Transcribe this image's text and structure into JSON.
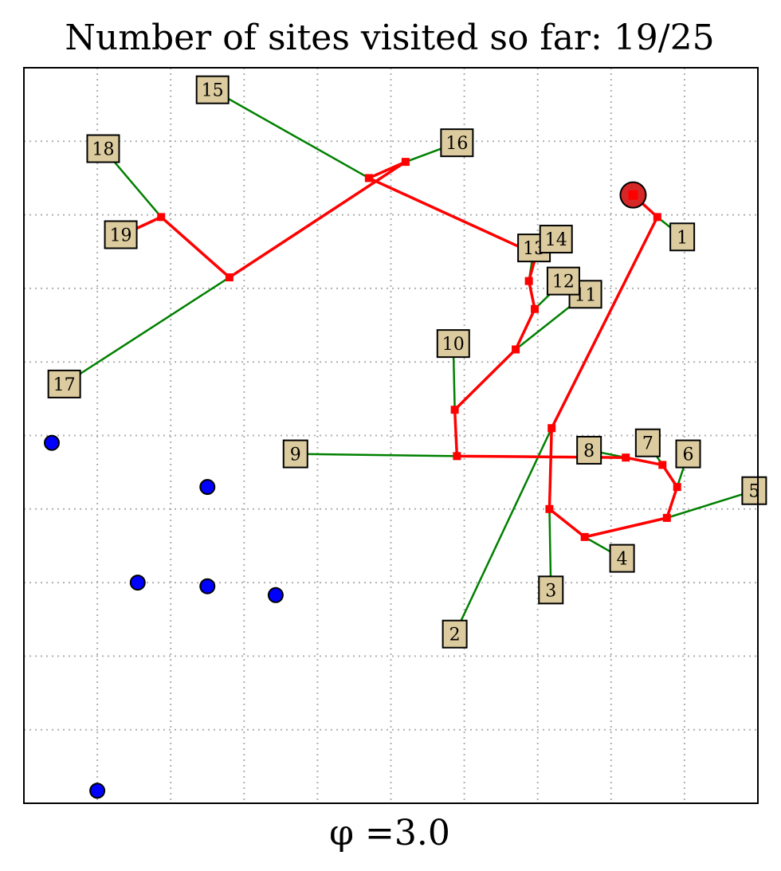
{
  "chart_data": {
    "type": "scatter",
    "title": "Number of sites visited so far: 19/25",
    "xlabel": "φ =3.0",
    "ylabel": "",
    "xlim": [
      0,
      10
    ],
    "ylim": [
      0,
      10
    ],
    "grid": true,
    "visited_count": 19,
    "total_sites": 25,
    "phi": 3.0,
    "colors": {
      "assignment_line": "#008000",
      "route_line": "#ff0000",
      "route_marker": "#ff0000",
      "start_marker": "#d62728",
      "unvisited_marker": "#0000ff",
      "label_box": "#dccb9e",
      "grid": "#b0b0b0"
    },
    "start": {
      "x": 8.3,
      "y": 8.27
    },
    "route": [
      {
        "x": 8.3,
        "y": 8.27
      },
      {
        "x": 8.63,
        "y": 7.97
      },
      {
        "x": 7.19,
        "y": 5.1
      },
      {
        "x": 7.16,
        "y": 4.0
      },
      {
        "x": 7.64,
        "y": 3.62
      },
      {
        "x": 8.76,
        "y": 3.88
      },
      {
        "x": 8.9,
        "y": 4.3
      },
      {
        "x": 8.7,
        "y": 4.6
      },
      {
        "x": 8.2,
        "y": 4.7
      },
      {
        "x": 5.9,
        "y": 4.72
      },
      {
        "x": 5.87,
        "y": 5.35
      },
      {
        "x": 6.7,
        "y": 6.17
      },
      {
        "x": 6.96,
        "y": 6.72
      },
      {
        "x": 6.88,
        "y": 7.1
      },
      {
        "x": 6.98,
        "y": 7.46
      },
      {
        "x": 4.7,
        "y": 8.5
      },
      {
        "x": 5.2,
        "y": 8.72
      },
      {
        "x": 2.8,
        "y": 7.15
      },
      {
        "x": 1.87,
        "y": 7.97
      },
      {
        "x": 1.35,
        "y": 7.73
      }
    ],
    "sites": [
      {
        "label": "1",
        "x": 8.97,
        "y": 7.7,
        "route_x": 8.63,
        "route_y": 7.97
      },
      {
        "label": "2",
        "x": 5.87,
        "y": 2.3,
        "route_x": 7.19,
        "route_y": 5.1
      },
      {
        "label": "3",
        "x": 7.18,
        "y": 2.9,
        "route_x": 7.16,
        "route_y": 4.0
      },
      {
        "label": "4",
        "x": 8.15,
        "y": 3.33,
        "route_x": 7.64,
        "route_y": 3.62
      },
      {
        "label": "5",
        "x": 9.95,
        "y": 4.25,
        "route_x": 8.76,
        "route_y": 3.88
      },
      {
        "label": "6",
        "x": 9.05,
        "y": 4.75,
        "route_x": 8.9,
        "route_y": 4.3
      },
      {
        "label": "7",
        "x": 8.5,
        "y": 4.9,
        "route_x": 8.7,
        "route_y": 4.6
      },
      {
        "label": "8",
        "x": 7.7,
        "y": 4.8,
        "route_x": 8.2,
        "route_y": 4.7
      },
      {
        "label": "9",
        "x": 3.7,
        "y": 4.75,
        "route_x": 5.9,
        "route_y": 4.72
      },
      {
        "label": "10",
        "x": 5.85,
        "y": 6.25,
        "route_x": 5.87,
        "route_y": 5.35
      },
      {
        "label": "11",
        "x": 7.65,
        "y": 6.92,
        "route_x": 6.7,
        "route_y": 6.17
      },
      {
        "label": "12",
        "x": 7.35,
        "y": 7.1,
        "route_x": 6.96,
        "route_y": 6.72
      },
      {
        "label": "13",
        "x": 6.95,
        "y": 7.55,
        "route_x": 6.88,
        "route_y": 7.1
      },
      {
        "label": "14",
        "x": 7.25,
        "y": 7.67,
        "route_x": 6.98,
        "route_y": 7.46
      },
      {
        "label": "15",
        "x": 2.57,
        "y": 9.7,
        "route_x": 4.7,
        "route_y": 8.5
      },
      {
        "label": "16",
        "x": 5.9,
        "y": 8.98,
        "route_x": 5.2,
        "route_y": 8.72
      },
      {
        "label": "17",
        "x": 0.55,
        "y": 5.7,
        "route_x": 2.8,
        "route_y": 7.15
      },
      {
        "label": "18",
        "x": 1.08,
        "y": 8.9,
        "route_x": 1.87,
        "route_y": 7.97
      },
      {
        "label": "19",
        "x": 1.32,
        "y": 7.73,
        "route_x": 1.35,
        "route_y": 7.73
      }
    ],
    "unvisited": [
      {
        "x": 0.38,
        "y": 4.9
      },
      {
        "x": 2.5,
        "y": 4.3
      },
      {
        "x": 1.55,
        "y": 3.0
      },
      {
        "x": 2.5,
        "y": 2.95
      },
      {
        "x": 3.43,
        "y": 2.83
      },
      {
        "x": 1.0,
        "y": 0.17
      }
    ]
  }
}
